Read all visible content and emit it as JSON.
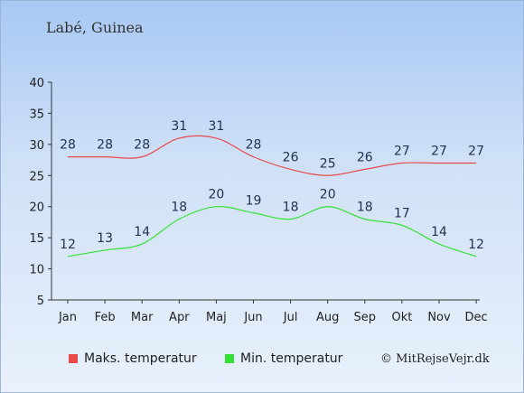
{
  "location": "Labé, Guinea",
  "copyright": "© MitRejseVejr.dk",
  "colors": {
    "max": "#e84a4a",
    "min": "#35e035",
    "axis": "#333333",
    "labels": "#1f3050"
  },
  "chart_data": {
    "type": "line",
    "categories": [
      "Jan",
      "Feb",
      "Mar",
      "Apr",
      "Maj",
      "Jun",
      "Jul",
      "Aug",
      "Sep",
      "Okt",
      "Nov",
      "Dec"
    ],
    "yticks": [
      5,
      10,
      15,
      20,
      25,
      30,
      35,
      40
    ],
    "ylim": [
      5,
      40
    ],
    "grid": false,
    "legend_position": "bottom",
    "series": [
      {
        "name": "Maks. temperatur",
        "values": [
          28,
          28,
          28,
          31,
          31,
          28,
          26,
          25,
          26,
          27,
          27,
          27
        ]
      },
      {
        "name": "Min. temperatur",
        "values": [
          12,
          13,
          14,
          18,
          20,
          19,
          18,
          20,
          18,
          17,
          14,
          12
        ]
      }
    ]
  }
}
